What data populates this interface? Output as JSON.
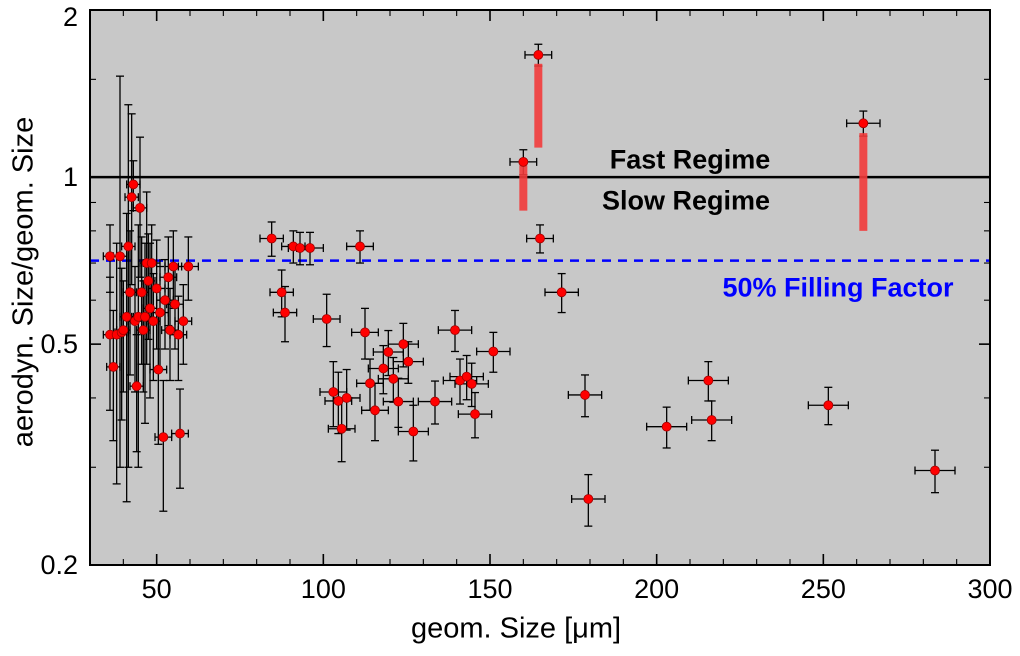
{
  "figure": {
    "background": "#ffffff",
    "plot_background": "#c8c8c8",
    "frame_color": "#000000"
  },
  "chart_data": {
    "type": "scatter",
    "title": "",
    "xlabel": "geom. Size [μm]",
    "ylabel": "aerodyn. Size/geom. Size",
    "x_scale": "linear",
    "y_scale": "log",
    "xlim": [
      30,
      300
    ],
    "ylim": [
      0.2,
      2
    ],
    "grid": false,
    "x_ticks": [
      50,
      100,
      150,
      200,
      250,
      300
    ],
    "x_tick_labels": [
      "50",
      "100",
      "150",
      "200",
      "250",
      "300"
    ],
    "x_minor_ticks": [
      40,
      60,
      70,
      80,
      90,
      110,
      120,
      130,
      140,
      160,
      170,
      180,
      190,
      210,
      220,
      230,
      240,
      260,
      270,
      280,
      290
    ],
    "y_ticks": [
      0.2,
      0.5,
      1,
      2
    ],
    "y_tick_labels": [
      "0.2",
      "0.5",
      "1",
      "2"
    ],
    "y_minor_ticks": [
      0.3,
      0.4,
      0.6,
      0.7,
      0.8,
      0.9,
      1.5
    ],
    "reference_lines": [
      {
        "name": "fast-slow-boundary",
        "y": 1.0,
        "style": "solid",
        "color": "#000000",
        "width": 2.5
      },
      {
        "name": "50-percent-filling-factor",
        "y": 0.7071,
        "style": "dashed",
        "color": "#0000ff",
        "width": 2.5
      }
    ],
    "annotations": {
      "fast_regime": "Fast Regime",
      "slow_regime": "Slow Regime",
      "filling_factor": "50% Filling Factor"
    },
    "marker": {
      "shape": "circle",
      "color": "#ff0000",
      "edge_color": "#a00000",
      "radius": 4.5
    },
    "error_bar_color": "#000000",
    "range_bar_color": "#f23b3b",
    "points": [
      {
        "x": 36,
        "y": 0.72,
        "ex": 2,
        "ey": 0.1
      },
      {
        "x": 36,
        "y": 0.52,
        "ex": 2,
        "ey": 0.14
      },
      {
        "x": 37,
        "y": 0.455,
        "ex": 2,
        "ey": 0.12
      },
      {
        "x": 38,
        "y": 0.52,
        "ex": 2,
        "ey": 0.24
      },
      {
        "x": 39,
        "y": 0.72,
        "ex": 2,
        "ey": 0.42,
        "ey2": 0.8
      },
      {
        "x": 39.5,
        "y": 0.525,
        "ex": 2,
        "ey": 0.16
      },
      {
        "x": 40,
        "y": 0.53,
        "ex": 2,
        "ey": 0.12
      },
      {
        "x": 41,
        "y": 0.56,
        "ex": 2,
        "ey": 0.3
      },
      {
        "x": 41.5,
        "y": 0.75,
        "ex": 2,
        "ey": 0.45,
        "ey2": 0.6
      },
      {
        "x": 42,
        "y": 0.62,
        "ex": 2,
        "ey": 0.18
      },
      {
        "x": 42.5,
        "y": 0.92,
        "ex": 2,
        "ey": 0.28,
        "ey2": 0.38
      },
      {
        "x": 43,
        "y": 0.97,
        "ex": 2,
        "ey": 0.1
      },
      {
        "x": 43.5,
        "y": 0.55,
        "ex": 2,
        "ey": 0.14
      },
      {
        "x": 44,
        "y": 0.42,
        "ex": 2,
        "ey": 0.1
      },
      {
        "x": 44.5,
        "y": 0.56,
        "ex": 2,
        "ey": 0.26
      },
      {
        "x": 45,
        "y": 0.88,
        "ex": 2,
        "ey": 0.22,
        "ey2": 0.3
      },
      {
        "x": 45.5,
        "y": 0.62,
        "ex": 2,
        "ey": 0.16
      },
      {
        "x": 46,
        "y": 0.53,
        "ex": 2,
        "ey": 0.12
      },
      {
        "x": 46.5,
        "y": 0.56,
        "ex": 2,
        "ey": 0.2
      },
      {
        "x": 47,
        "y": 0.7,
        "ex": 2,
        "ey": 0.24
      },
      {
        "x": 47.5,
        "y": 0.65,
        "ex": 2,
        "ey": 0.14
      },
      {
        "x": 48,
        "y": 0.58,
        "ex": 2,
        "ey": 0.18
      },
      {
        "x": 48.5,
        "y": 0.7,
        "ex": 2.5,
        "ey": 0.12
      },
      {
        "x": 49,
        "y": 0.55,
        "ex": 2,
        "ey": 0.12
      },
      {
        "x": 50,
        "y": 0.63,
        "ex": 2.5,
        "ey": 0.14
      },
      {
        "x": 50.5,
        "y": 0.45,
        "ex": 2.5,
        "ey": 0.12
      },
      {
        "x": 51,
        "y": 0.57,
        "ex": 2.5,
        "ey": 0.12
      },
      {
        "x": 52,
        "y": 0.34,
        "ex": 2.5,
        "ey": 0.09
      },
      {
        "x": 52.5,
        "y": 0.6,
        "ex": 2.5,
        "ey": 0.11
      },
      {
        "x": 53.5,
        "y": 0.66,
        "ex": 2.5,
        "ey": 0.12
      },
      {
        "x": 54,
        "y": 0.53,
        "ex": 2.5,
        "ey": 0.1
      },
      {
        "x": 55,
        "y": 0.69,
        "ex": 2.5,
        "ey": 0.11
      },
      {
        "x": 55.5,
        "y": 0.59,
        "ex": 2.5,
        "ey": 0.1
      },
      {
        "x": 56.5,
        "y": 0.52,
        "ex": 2.5,
        "ey": 0.09
      },
      {
        "x": 57,
        "y": 0.345,
        "ex": 2.5,
        "ey": 0.07
      },
      {
        "x": 58,
        "y": 0.55,
        "ex": 2.5,
        "ey": 0.09
      },
      {
        "x": 59.5,
        "y": 0.69,
        "ex": 3,
        "ey": 0.09
      },
      {
        "x": 84.5,
        "y": 0.775,
        "ex": 3.5,
        "ey": 0.055
      },
      {
        "x": 87.5,
        "y": 0.62,
        "ex": 3.5,
        "ey": 0.06
      },
      {
        "x": 88.5,
        "y": 0.57,
        "ex": 3.5,
        "ey": 0.065
      },
      {
        "x": 91,
        "y": 0.75,
        "ex": 3.5,
        "ey": 0.05
      },
      {
        "x": 93,
        "y": 0.745,
        "ex": 3.5,
        "ey": 0.05
      },
      {
        "x": 96,
        "y": 0.745,
        "ex": 4,
        "ey": 0.05
      },
      {
        "x": 101,
        "y": 0.555,
        "ex": 4,
        "ey": 0.06
      },
      {
        "x": 103,
        "y": 0.41,
        "ex": 4,
        "ey": 0.055
      },
      {
        "x": 104.5,
        "y": 0.395,
        "ex": 4,
        "ey": 0.05
      },
      {
        "x": 105.5,
        "y": 0.352,
        "ex": 4,
        "ey": 0.045
      },
      {
        "x": 107,
        "y": 0.4,
        "ex": 4,
        "ey": 0.05
      },
      {
        "x": 111,
        "y": 0.75,
        "ex": 4,
        "ey": 0.05
      },
      {
        "x": 112.5,
        "y": 0.525,
        "ex": 4,
        "ey": 0.055
      },
      {
        "x": 114,
        "y": 0.425,
        "ex": 4,
        "ey": 0.045
      },
      {
        "x": 115.5,
        "y": 0.38,
        "ex": 4,
        "ey": 0.045
      },
      {
        "x": 118,
        "y": 0.452,
        "ex": 4.5,
        "ey": 0.045
      },
      {
        "x": 119.5,
        "y": 0.484,
        "ex": 4.5,
        "ey": 0.045
      },
      {
        "x": 121,
        "y": 0.433,
        "ex": 4.5,
        "ey": 0.04
      },
      {
        "x": 122.5,
        "y": 0.394,
        "ex": 4.5,
        "ey": 0.04
      },
      {
        "x": 124,
        "y": 0.5,
        "ex": 4.5,
        "ey": 0.045
      },
      {
        "x": 125.5,
        "y": 0.465,
        "ex": 4.5,
        "ey": 0.04
      },
      {
        "x": 127,
        "y": 0.348,
        "ex": 4.5,
        "ey": 0.04
      },
      {
        "x": 133.5,
        "y": 0.394,
        "ex": 5,
        "ey": 0.035
      },
      {
        "x": 139.5,
        "y": 0.53,
        "ex": 5,
        "ey": 0.045
      },
      {
        "x": 141,
        "y": 0.43,
        "ex": 5,
        "ey": 0.04
      },
      {
        "x": 143,
        "y": 0.437,
        "ex": 5,
        "ey": 0.04
      },
      {
        "x": 144.5,
        "y": 0.424,
        "ex": 5,
        "ey": 0.038
      },
      {
        "x": 145.5,
        "y": 0.374,
        "ex": 5,
        "ey": 0.035
      },
      {
        "x": 151,
        "y": 0.485,
        "ex": 5,
        "ey": 0.04
      },
      {
        "x": 160,
        "y": 1.065,
        "ex": 4,
        "ey": 0.055,
        "bar": [
          0.87,
          1.05
        ]
      },
      {
        "x": 164.5,
        "y": 1.66,
        "ex": 4,
        "ey": 0.075,
        "bar": [
          1.13,
          1.6
        ]
      },
      {
        "x": 165,
        "y": 0.775,
        "ex": 4,
        "ey": 0.045
      },
      {
        "x": 171.5,
        "y": 0.62,
        "ex": 5,
        "ey": 0.05
      },
      {
        "x": 178.5,
        "y": 0.405,
        "ex": 5,
        "ey": 0.035
      },
      {
        "x": 179.5,
        "y": 0.263,
        "ex": 5,
        "ey": 0.028
      },
      {
        "x": 203,
        "y": 0.355,
        "ex": 6,
        "ey": 0.03
      },
      {
        "x": 215.5,
        "y": 0.43,
        "ex": 6,
        "ey": 0.035
      },
      {
        "x": 216.5,
        "y": 0.365,
        "ex": 6,
        "ey": 0.03
      },
      {
        "x": 251.5,
        "y": 0.388,
        "ex": 6,
        "ey": 0.03
      },
      {
        "x": 262,
        "y": 1.25,
        "ex": 5,
        "ey": 0.065,
        "bar": [
          0.8,
          1.2
        ]
      },
      {
        "x": 283.5,
        "y": 0.296,
        "ex": 6,
        "ey": 0.026
      }
    ]
  }
}
